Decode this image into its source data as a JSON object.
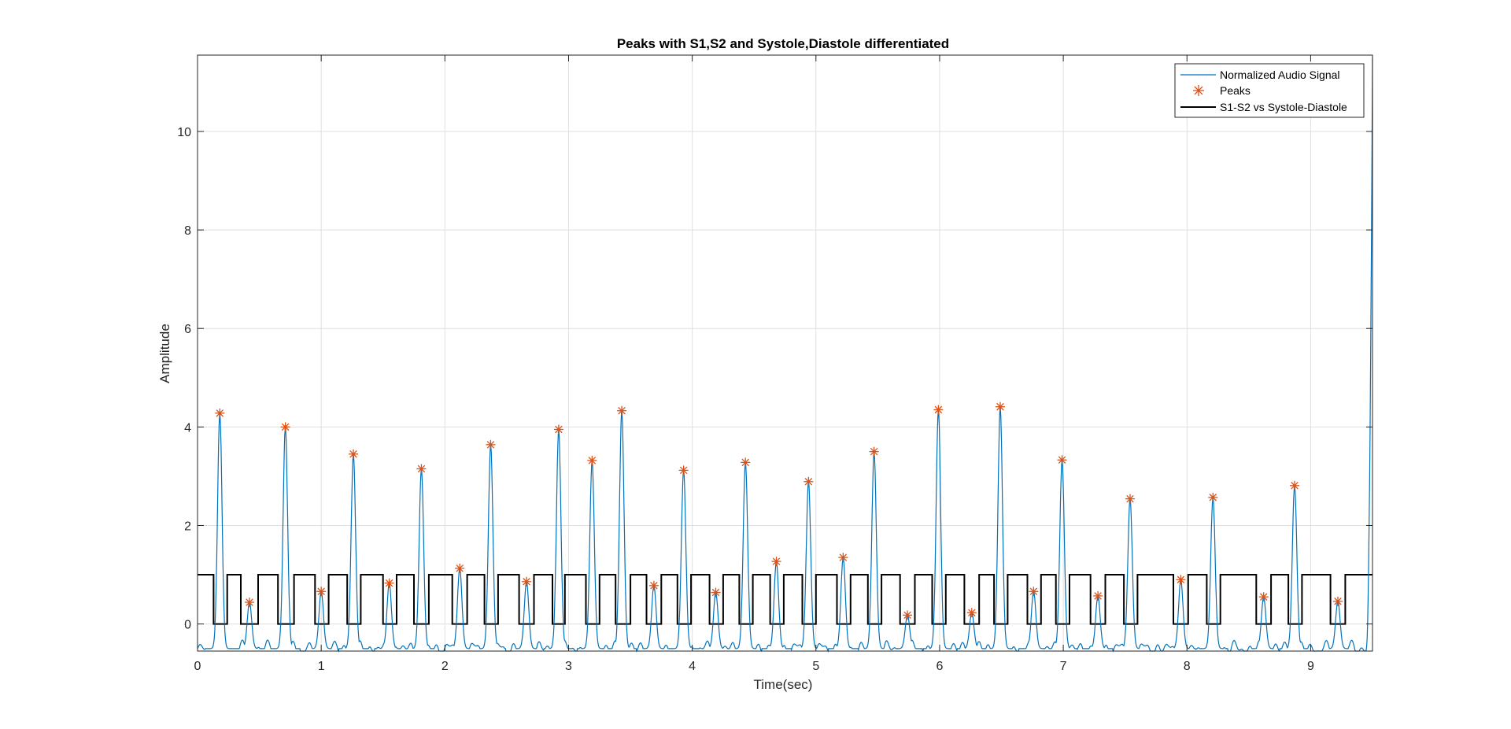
{
  "chart_data": {
    "type": "line",
    "title": "Peaks with S1,S2 and Systole,Diastole differentiated",
    "xlabel": "Time(sec)",
    "ylabel": "Amplitude",
    "xlim": [
      0,
      9.5
    ],
    "ylim": [
      -0.55,
      11.55
    ],
    "xticks": [
      0,
      1,
      2,
      3,
      4,
      5,
      6,
      7,
      8,
      9
    ],
    "yticks": [
      0,
      2,
      4,
      6,
      8,
      10
    ],
    "grid": true,
    "legend_position": "top-right",
    "colors": {
      "signal": "#0072BD",
      "peaks": "#D95319",
      "step": "#000000",
      "grid": "#dfdfdf",
      "axes": "#262626"
    },
    "series": [
      {
        "name": "Normalized Audio Signal",
        "type": "line",
        "note_peaks_follow": "Peaks",
        "end_spike": {
          "x": 9.5,
          "y": 11.5
        }
      },
      {
        "name": "Peaks",
        "type": "scatter",
        "marker": "asterisk",
        "x": [
          0.18,
          0.42,
          0.71,
          1.0,
          1.26,
          1.55,
          1.81,
          2.12,
          2.37,
          2.66,
          2.92,
          3.19,
          3.43,
          3.69,
          3.93,
          4.19,
          4.43,
          4.68,
          4.94,
          5.22,
          5.47,
          5.74,
          5.99,
          6.26,
          6.49,
          6.76,
          6.99,
          7.28,
          7.54,
          7.95,
          8.21,
          8.62,
          8.87,
          9.22
        ],
        "y": [
          4.28,
          0.44,
          4.0,
          0.66,
          3.45,
          0.83,
          3.15,
          1.13,
          3.64,
          0.86,
          3.95,
          3.32,
          4.33,
          0.78,
          3.12,
          0.64,
          3.28,
          1.27,
          2.89,
          1.35,
          3.5,
          0.18,
          4.35,
          0.23,
          4.41,
          0.66,
          3.33,
          0.57,
          2.54,
          0.9,
          2.57,
          0.55,
          2.81,
          0.46
        ]
      },
      {
        "name": "S1-S2 vs Systole-Diastole",
        "type": "step",
        "segments": [
          [
            0.0,
            0.13,
            1
          ],
          [
            0.13,
            0.24,
            0
          ],
          [
            0.24,
            0.35,
            1
          ],
          [
            0.35,
            0.49,
            0
          ],
          [
            0.49,
            0.65,
            1
          ],
          [
            0.65,
            0.78,
            0
          ],
          [
            0.78,
            0.95,
            1
          ],
          [
            0.95,
            1.06,
            0
          ],
          [
            1.06,
            1.21,
            1
          ],
          [
            1.21,
            1.32,
            0
          ],
          [
            1.32,
            1.5,
            1
          ],
          [
            1.5,
            1.61,
            0
          ],
          [
            1.61,
            1.75,
            1
          ],
          [
            1.75,
            1.87,
            0
          ],
          [
            1.87,
            2.06,
            1
          ],
          [
            2.06,
            2.18,
            0
          ],
          [
            2.18,
            2.32,
            1
          ],
          [
            2.32,
            2.43,
            0
          ],
          [
            2.43,
            2.6,
            1
          ],
          [
            2.6,
            2.72,
            0
          ],
          [
            2.72,
            2.87,
            1
          ],
          [
            2.87,
            2.97,
            0
          ],
          [
            2.97,
            3.14,
            1
          ],
          [
            3.14,
            3.25,
            0
          ],
          [
            3.25,
            3.38,
            1
          ],
          [
            3.38,
            3.5,
            0
          ],
          [
            3.5,
            3.63,
            1
          ],
          [
            3.63,
            3.75,
            0
          ],
          [
            3.75,
            3.88,
            1
          ],
          [
            3.88,
            3.99,
            0
          ],
          [
            3.99,
            4.14,
            1
          ],
          [
            4.14,
            4.25,
            0
          ],
          [
            4.25,
            4.38,
            1
          ],
          [
            4.38,
            4.49,
            0
          ],
          [
            4.49,
            4.63,
            1
          ],
          [
            4.63,
            4.74,
            0
          ],
          [
            4.74,
            4.89,
            1
          ],
          [
            4.89,
            5.0,
            0
          ],
          [
            5.0,
            5.17,
            1
          ],
          [
            5.17,
            5.28,
            0
          ],
          [
            5.28,
            5.42,
            1
          ],
          [
            5.42,
            5.53,
            0
          ],
          [
            5.53,
            5.68,
            1
          ],
          [
            5.68,
            5.8,
            0
          ],
          [
            5.8,
            5.94,
            1
          ],
          [
            5.94,
            6.05,
            0
          ],
          [
            6.05,
            6.2,
            1
          ],
          [
            6.2,
            6.32,
            0
          ],
          [
            6.32,
            6.44,
            1
          ],
          [
            6.44,
            6.55,
            0
          ],
          [
            6.55,
            6.71,
            1
          ],
          [
            6.71,
            6.82,
            0
          ],
          [
            6.82,
            6.94,
            1
          ],
          [
            6.94,
            7.05,
            0
          ],
          [
            7.05,
            7.22,
            1
          ],
          [
            7.22,
            7.34,
            0
          ],
          [
            7.34,
            7.49,
            1
          ],
          [
            7.49,
            7.6,
            0
          ],
          [
            7.6,
            7.89,
            1
          ],
          [
            7.89,
            8.01,
            0
          ],
          [
            8.01,
            8.16,
            1
          ],
          [
            8.16,
            8.27,
            0
          ],
          [
            8.27,
            8.56,
            1
          ],
          [
            8.56,
            8.68,
            0
          ],
          [
            8.68,
            8.82,
            1
          ],
          [
            8.82,
            8.93,
            0
          ],
          [
            8.93,
            9.16,
            1
          ],
          [
            9.16,
            9.28,
            0
          ],
          [
            9.28,
            9.5,
            1
          ]
        ]
      }
    ]
  }
}
